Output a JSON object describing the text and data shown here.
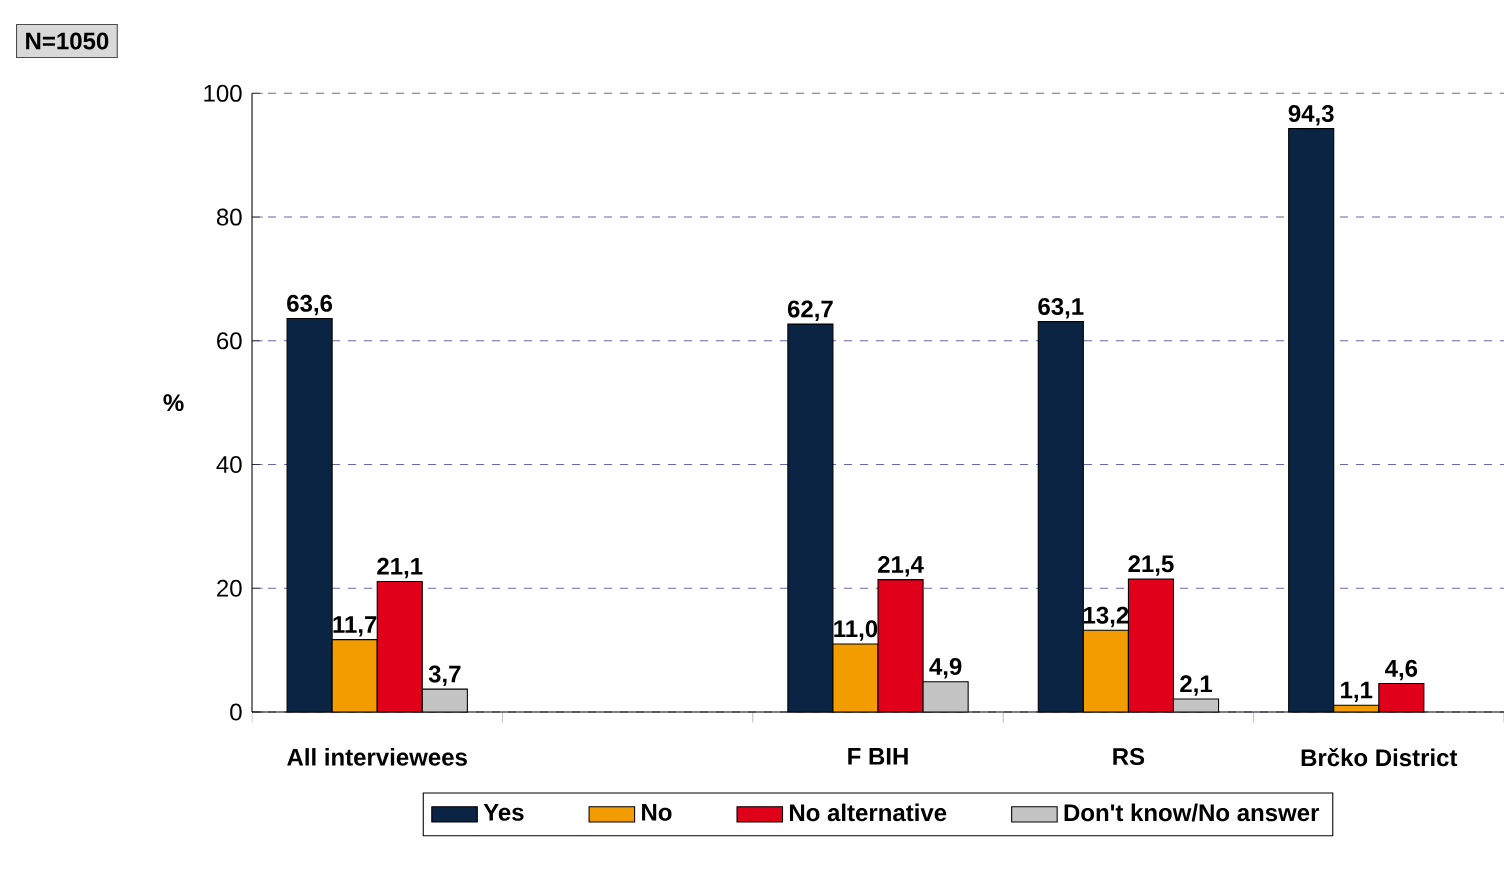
{
  "chart_data": {
    "type": "bar",
    "ylabel": "%",
    "categories": [
      "All interviewees",
      null,
      "F BIH",
      "RS",
      "Brčko District"
    ],
    "series": [
      {
        "name": "Yes",
        "color": "#0b2444",
        "values": [
          63.6,
          null,
          62.7,
          63.1,
          94.3
        ],
        "value_labels": [
          "63,6",
          null,
          "62,7",
          "63,1",
          "94,3"
        ]
      },
      {
        "name": "No",
        "color": "#f29c00",
        "values": [
          11.7,
          null,
          11.0,
          13.2,
          1.1
        ],
        "value_labels": [
          "11,7",
          null,
          "11,0",
          "13,2",
          "1,1"
        ]
      },
      {
        "name": "No alternative",
        "color": "#e0001a",
        "values": [
          21.1,
          null,
          21.4,
          21.5,
          4.6
        ],
        "value_labels": [
          "21,1",
          null,
          "21,4",
          "21,5",
          "4,6"
        ]
      },
      {
        "name": "Don't know/No answer",
        "color": "#c4c4c4",
        "values": [
          3.7,
          null,
          4.9,
          2.1,
          null
        ],
        "value_labels": [
          "3,7",
          null,
          "4,9",
          "2,1",
          null
        ]
      }
    ],
    "ylim": [
      0,
      100
    ],
    "yticks": [
      0,
      20,
      40,
      60,
      80,
      100
    ],
    "grid": "y",
    "legend": "bottom",
    "annotations": [
      "N=1050"
    ]
  }
}
